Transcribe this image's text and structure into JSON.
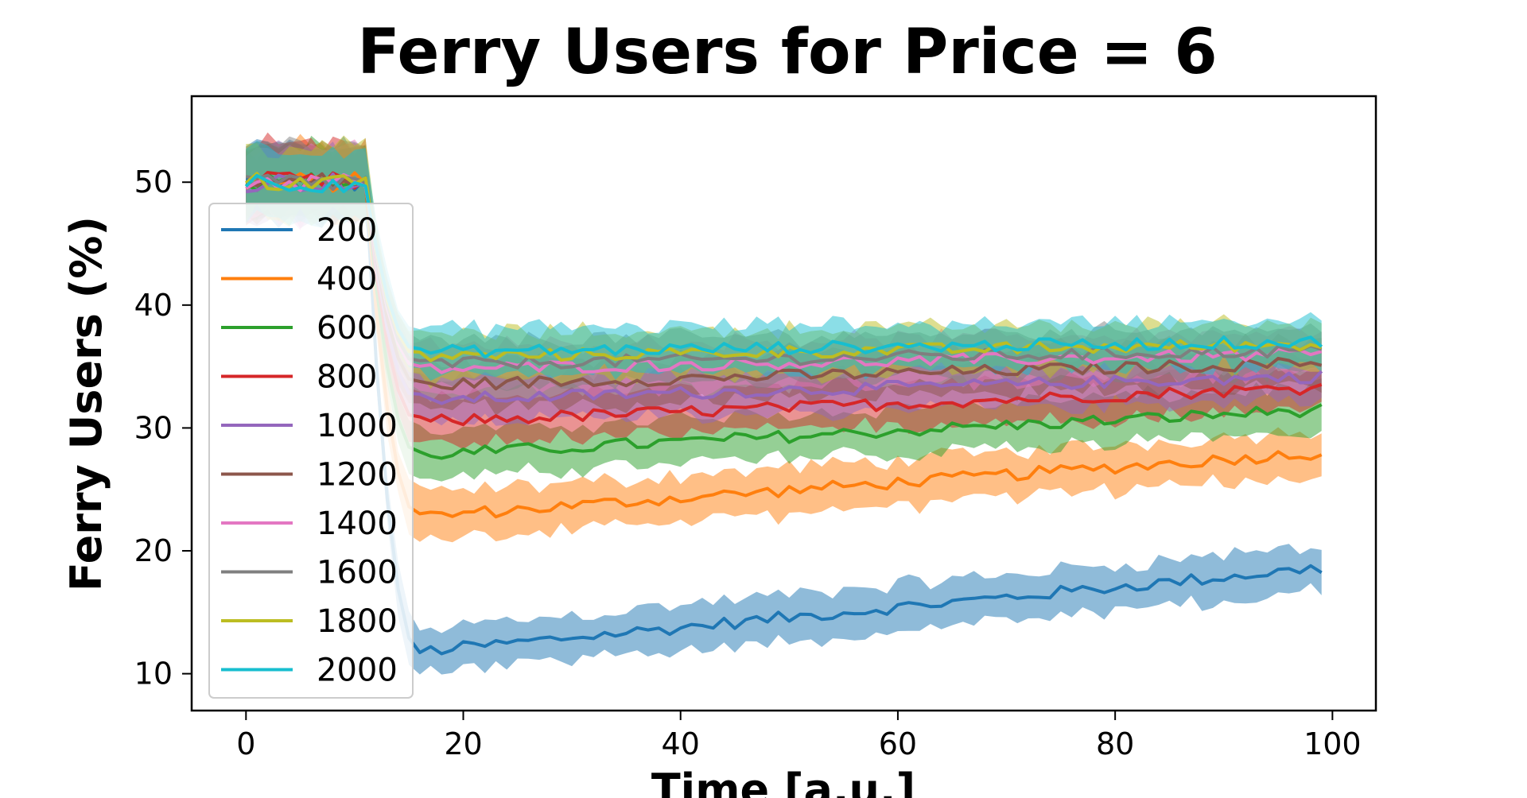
{
  "chart_data": {
    "type": "line",
    "title": "Ferry Users for Price = 6",
    "xlabel": "Time [a.u.]",
    "ylabel": "Ferry Users (%)",
    "xlim": [
      -5,
      104
    ],
    "ylim": [
      7,
      57
    ],
    "xticks": [
      0,
      20,
      40,
      60,
      80,
      100
    ],
    "yticks": [
      10,
      20,
      30,
      40,
      50
    ],
    "grid": false,
    "legend_position": "left",
    "band": "shaded band around each series (approx. ±1.5)",
    "colors": [
      "#1f77b4",
      "#ff7f0e",
      "#2ca02c",
      "#d62728",
      "#9467bd",
      "#8c564b",
      "#e377c2",
      "#7f7f7f",
      "#bcbd22",
      "#17becf"
    ],
    "series": [
      {
        "name": "200",
        "start": 50,
        "plateau_start": 11.8,
        "end": 18.6
      },
      {
        "name": "400",
        "start": 50,
        "plateau_start": 22.8,
        "end": 28.0
      },
      {
        "name": "600",
        "start": 50,
        "plateau_start": 27.8,
        "end": 31.5
      },
      {
        "name": "800",
        "start": 50,
        "plateau_start": 30.5,
        "end": 33.3
      },
      {
        "name": "1000",
        "start": 50,
        "plateau_start": 32.3,
        "end": 34.2
      },
      {
        "name": "1200",
        "start": 50,
        "plateau_start": 33.5,
        "end": 35.3
      },
      {
        "name": "1400",
        "start": 50,
        "plateau_start": 34.8,
        "end": 36.0
      },
      {
        "name": "1600",
        "start": 50,
        "plateau_start": 35.2,
        "end": 36.3
      },
      {
        "name": "1800",
        "start": 50,
        "plateau_start": 35.8,
        "end": 36.8
      },
      {
        "name": "2000",
        "start": 50,
        "plateau_start": 36.2,
        "end": 37.0
      }
    ]
  }
}
